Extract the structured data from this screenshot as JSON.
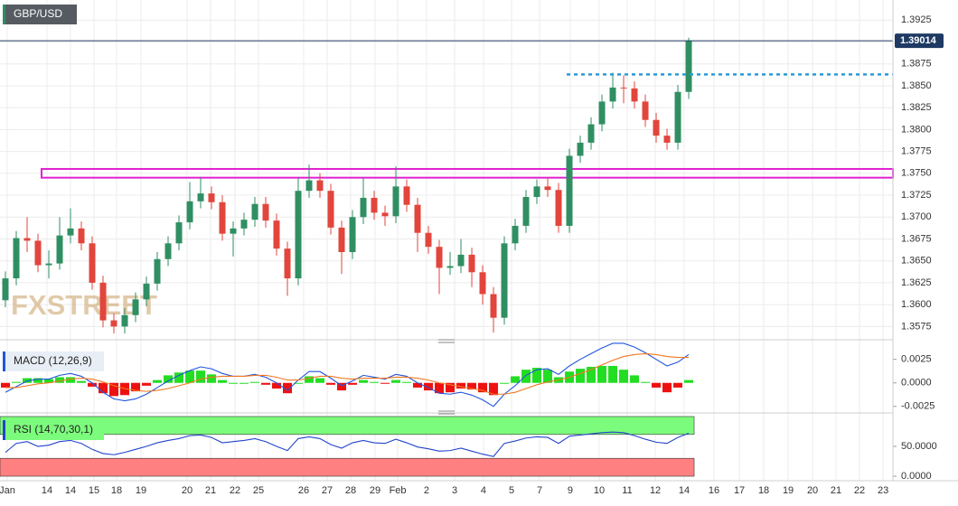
{
  "chart_data": [
    {
      "type": "candlestick",
      "title": "GBP/USD",
      "watermark": "FXSTREET",
      "up_color": "#2f8f63",
      "down_color": "#e2453c",
      "xlim": [
        -0.5,
        81.83
      ],
      "xticks": [
        {
          "value": 0.17,
          "label": "Jan"
        },
        {
          "value": 3.83,
          "label": "14"
        },
        {
          "value": 6,
          "label": "14"
        },
        {
          "value": 8.17,
          "label": "15"
        },
        {
          "value": 10.25,
          "label": "18"
        },
        {
          "value": 12.5,
          "label": "19"
        },
        {
          "value": 16.75,
          "label": "20"
        },
        {
          "value": 18.92,
          "label": "21"
        },
        {
          "value": 21.17,
          "label": "22"
        },
        {
          "value": 23.33,
          "label": "25"
        },
        {
          "value": 27.5,
          "label": "26"
        },
        {
          "value": 29.67,
          "label": "27"
        },
        {
          "value": 31.83,
          "label": "28"
        },
        {
          "value": 34.08,
          "label": "29"
        },
        {
          "value": 36.17,
          "label": "Feb"
        },
        {
          "value": 38.83,
          "label": "2"
        },
        {
          "value": 41.42,
          "label": "3"
        },
        {
          "value": 44.08,
          "label": "4"
        },
        {
          "value": 46.67,
          "label": "5"
        },
        {
          "value": 49.25,
          "label": "7"
        },
        {
          "value": 52.08,
          "label": "9"
        },
        {
          "value": 54.75,
          "label": "10"
        },
        {
          "value": 57.33,
          "label": "11"
        },
        {
          "value": 59.92,
          "label": "12"
        },
        {
          "value": 62.58,
          "label": "14"
        },
        {
          "value": 65.33,
          "label": "16"
        },
        {
          "value": 67.67,
          "label": "17"
        },
        {
          "value": 69.92,
          "label": "18"
        },
        {
          "value": 72.17,
          "label": "19"
        },
        {
          "value": 74.42,
          "label": "20"
        },
        {
          "value": 76.58,
          "label": "21"
        },
        {
          "value": 78.75,
          "label": "22"
        },
        {
          "value": 80.92,
          "label": "23"
        }
      ],
      "ylim": [
        1.3564,
        1.3948
      ],
      "yticks": [
        1.3925,
        {
          "value": 1.39,
          "label": "1.3900"
        },
        1.3875,
        {
          "value": 1.385,
          "label": "1.3850"
        },
        1.3825,
        {
          "value": 1.38,
          "label": "1.3800"
        },
        1.3775,
        {
          "value": 1.375,
          "label": "1.3750"
        },
        1.3725,
        {
          "value": 1.37,
          "label": "1.3700"
        },
        1.3675,
        {
          "value": 1.365,
          "label": "1.3650"
        },
        1.3625,
        {
          "value": 1.36,
          "label": "1.3600"
        },
        1.3575
      ],
      "last_price": 1.39014,
      "last_price_color": "#1e3a63",
      "resistance": {
        "value": 1.3863,
        "x_start": 51.75,
        "color": "#2a9ad6"
      },
      "zone": {
        "low": 1.3745,
        "high": 1.3755,
        "x_start": 3.33,
        "color": "#e21fd0"
      },
      "candles": [
        [
          1.3605,
          1.3638,
          1.3597,
          1.363
        ],
        [
          1.363,
          1.3684,
          1.3622,
          1.3676
        ],
        [
          1.3676,
          1.37,
          1.366,
          1.3673
        ],
        [
          1.3673,
          1.3681,
          1.3637,
          1.3645
        ],
        [
          1.3645,
          1.3662,
          1.363,
          1.3647
        ],
        [
          1.3647,
          1.37,
          1.364,
          1.3679
        ],
        [
          1.3679,
          1.371,
          1.367,
          1.3687
        ],
        [
          1.3687,
          1.3695,
          1.3662,
          1.367
        ],
        [
          1.367,
          1.3678,
          1.3617,
          1.3625
        ],
        [
          1.3625,
          1.3633,
          1.3574,
          1.3582
        ],
        [
          1.3582,
          1.359,
          1.3567,
          1.3575
        ],
        [
          1.3575,
          1.3596,
          1.3567,
          1.3588
        ],
        [
          1.3588,
          1.3614,
          1.358,
          1.3606
        ],
        [
          1.3606,
          1.3632,
          1.3598,
          1.3624
        ],
        [
          1.3624,
          1.366,
          1.3616,
          1.3652
        ],
        [
          1.3652,
          1.3678,
          1.3644,
          1.367
        ],
        [
          1.367,
          1.3702,
          1.3662,
          1.3694
        ],
        [
          1.3694,
          1.374,
          1.3686,
          1.3718
        ],
        [
          1.3718,
          1.3745,
          1.371,
          1.3727
        ],
        [
          1.3727,
          1.3735,
          1.3709,
          1.3717
        ],
        [
          1.3717,
          1.3725,
          1.3673,
          1.3681
        ],
        [
          1.3681,
          1.3695,
          1.3655,
          1.3687
        ],
        [
          1.3687,
          1.3705,
          1.3679,
          1.3697
        ],
        [
          1.3697,
          1.3723,
          1.3689,
          1.3715
        ],
        [
          1.3715,
          1.3723,
          1.3688,
          1.3696
        ],
        [
          1.3696,
          1.3704,
          1.3656,
          1.3664
        ],
        [
          1.3664,
          1.3672,
          1.361,
          1.363
        ],
        [
          1.363,
          1.3745,
          1.3622,
          1.373
        ],
        [
          1.373,
          1.376,
          1.3722,
          1.3742
        ],
        [
          1.3742,
          1.375,
          1.3722,
          1.373
        ],
        [
          1.373,
          1.3738,
          1.368,
          1.3688
        ],
        [
          1.3688,
          1.3696,
          1.3635,
          1.366
        ],
        [
          1.366,
          1.3708,
          1.3652,
          1.37
        ],
        [
          1.37,
          1.3745,
          1.3692,
          1.3722
        ],
        [
          1.3722,
          1.373,
          1.3697,
          1.3705
        ],
        [
          1.3705,
          1.3713,
          1.369,
          1.3701
        ],
        [
          1.3701,
          1.3758,
          1.3693,
          1.3735
        ],
        [
          1.3735,
          1.3743,
          1.3706,
          1.3714
        ],
        [
          1.3714,
          1.3722,
          1.366,
          1.3682
        ],
        [
          1.3682,
          1.369,
          1.3658,
          1.3666
        ],
        [
          1.3666,
          1.3674,
          1.3612,
          1.3642
        ],
        [
          1.3642,
          1.366,
          1.3634,
          1.3644
        ],
        [
          1.3644,
          1.3675,
          1.3636,
          1.3657
        ],
        [
          1.3657,
          1.3665,
          1.362,
          1.3637
        ],
        [
          1.3637,
          1.3645,
          1.36,
          1.3612
        ],
        [
          1.3612,
          1.362,
          1.3568,
          1.3585
        ],
        [
          1.3585,
          1.3678,
          1.3577,
          1.367
        ],
        [
          1.367,
          1.3698,
          1.3662,
          1.369
        ],
        [
          1.369,
          1.3731,
          1.3682,
          1.3723
        ],
        [
          1.3723,
          1.3743,
          1.3715,
          1.3735
        ],
        [
          1.3735,
          1.3745,
          1.3723,
          1.3731
        ],
        [
          1.3731,
          1.3739,
          1.3682,
          1.369
        ],
        [
          1.369,
          1.3778,
          1.3682,
          1.377
        ],
        [
          1.377,
          1.3793,
          1.3762,
          1.3785
        ],
        [
          1.3785,
          1.3814,
          1.3777,
          1.3806
        ],
        [
          1.3806,
          1.384,
          1.3798,
          1.3832
        ],
        [
          1.3832,
          1.3865,
          1.3824,
          1.3848
        ],
        [
          1.3848,
          1.3862,
          1.383,
          1.3847
        ],
        [
          1.3847,
          1.3855,
          1.3824,
          1.3832
        ],
        [
          1.3832,
          1.384,
          1.3803,
          1.3811
        ],
        [
          1.3811,
          1.3819,
          1.3785,
          1.3793
        ],
        [
          1.3793,
          1.3801,
          1.3777,
          1.3785
        ],
        [
          1.3785,
          1.3851,
          1.3777,
          1.3843
        ],
        [
          1.3843,
          1.3905,
          1.3835,
          1.3901
        ]
      ]
    },
    {
      "type": "macd",
      "title": "MACD (12,26,9)",
      "ylim": [
        -0.003,
        0.0041
      ],
      "yticks": [
        0.0025,
        {
          "value": 0,
          "label": "0.0000"
        },
        -0.0025
      ],
      "pos_color": "#22dd22",
      "neg_color": "#ee1111",
      "histogram": [
        -0.0005,
        0.0001,
        0.0005,
        0.0005,
        0.0004,
        0.0006,
        0.0006,
        0.0002,
        -0.0004,
        -0.0011,
        -0.0014,
        -0.0013,
        -0.0009,
        -0.0003,
        0.0003,
        0.0008,
        0.0011,
        0.0013,
        0.0013,
        0.0009,
        0.0003,
        0,
        0,
        0.0001,
        -0.0002,
        -0.0006,
        -0.0011,
        0,
        0.0007,
        0.0005,
        -0.0002,
        -0.0008,
        -0.0002,
        0.0003,
        0.0001,
        -0.0001,
        0.0003,
        0.0001,
        -0.0005,
        -0.0008,
        -0.0011,
        -0.001,
        -0.0006,
        -0.0007,
        -0.001,
        -0.0013,
        0,
        0.0007,
        0.0014,
        0.0016,
        0.0014,
        0.0006,
        0.0012,
        0.0015,
        0.0017,
        0.0018,
        0.0018,
        0.0014,
        0.0008,
        0.0001,
        -0.0005,
        -0.001,
        -0.0005,
        0.0003
      ],
      "series": [
        {
          "name": "MACD",
          "color": "#2255dd",
          "values": [
            -0.001,
            -0.0004,
            0.0002,
            0.0004,
            0.0004,
            0.0008,
            0.001,
            0.0007,
            0,
            -0.001,
            -0.0017,
            -0.0019,
            -0.0017,
            -0.0012,
            -0.0005,
            0.0002,
            0.0008,
            0.0013,
            0.0017,
            0.0015,
            0.001,
            0.0007,
            0.0007,
            0.0009,
            0.0006,
            0,
            -0.0008,
            0.0003,
            0.0012,
            0.0012,
            0.0005,
            -0.0003,
            0.0002,
            0.0008,
            0.0006,
            0.0004,
            0.0009,
            0.0007,
            0,
            -0.0005,
            -0.0011,
            -0.0012,
            -0.001,
            -0.0013,
            -0.0018,
            -0.0025,
            -0.0012,
            -0.0003,
            0.0008,
            0.0014,
            0.0015,
            0.0009,
            0.0018,
            0.0025,
            0.0031,
            0.0037,
            0.0042,
            0.0042,
            0.0038,
            0.0032,
            0.0025,
            0.0018,
            0.0022,
            0.003
          ]
        },
        {
          "name": "Signal",
          "color": "#f07820",
          "values": [
            -0.0005,
            -0.0005,
            -0.0003,
            -0.0001,
            0,
            0.0002,
            0.0004,
            0.0005,
            0.0004,
            0.0001,
            -0.0003,
            -0.0006,
            -0.0008,
            -0.0009,
            -0.0008,
            -0.0006,
            -0.0003,
            0,
            0.0004,
            0.0006,
            0.0007,
            0.0007,
            0.0007,
            0.0008,
            0.0008,
            0.0006,
            0.0003,
            0.0003,
            0.0005,
            0.0007,
            0.0007,
            0.0005,
            0.0004,
            0.0005,
            0.0005,
            0.0005,
            0.0006,
            0.0006,
            0.0005,
            0.0003,
            0,
            -0.0002,
            -0.0004,
            -0.0006,
            -0.0008,
            -0.0012,
            -0.0012,
            -0.001,
            -0.0006,
            -0.0002,
            0.0001,
            0.0003,
            0.0006,
            0.001,
            0.0014,
            0.0019,
            0.0024,
            0.0028,
            0.003,
            0.0031,
            0.003,
            0.0028,
            0.0027,
            0.0027
          ]
        }
      ]
    },
    {
      "type": "rsi",
      "title": "RSI (14,70,30,1)",
      "ylim": [
        -4.5,
        101.5
      ],
      "yticks": [
        {
          "value": 50,
          "label": "50.0000"
        },
        {
          "value": 0,
          "label": "0.0000"
        }
      ],
      "overbought": 70,
      "oversold": 30,
      "top": 100,
      "bottom": 0,
      "overbought_color": "#7cfc7c",
      "oversold_color": "#ff8080",
      "series": [
        {
          "name": "RSI",
          "color": "#2244cc",
          "values": [
            40,
            55,
            58,
            50,
            52,
            58,
            60,
            55,
            45,
            38,
            36,
            40,
            45,
            50,
            56,
            60,
            63,
            68,
            69,
            65,
            56,
            58,
            60,
            63,
            58,
            50,
            43,
            63,
            66,
            63,
            53,
            47,
            56,
            60,
            56,
            55,
            62,
            56,
            49,
            46,
            42,
            43,
            47,
            42,
            37,
            33,
            55,
            59,
            64,
            66,
            65,
            55,
            67,
            69,
            71,
            73,
            74,
            73,
            68,
            62,
            57,
            55,
            65,
            72
          ]
        }
      ]
    }
  ]
}
